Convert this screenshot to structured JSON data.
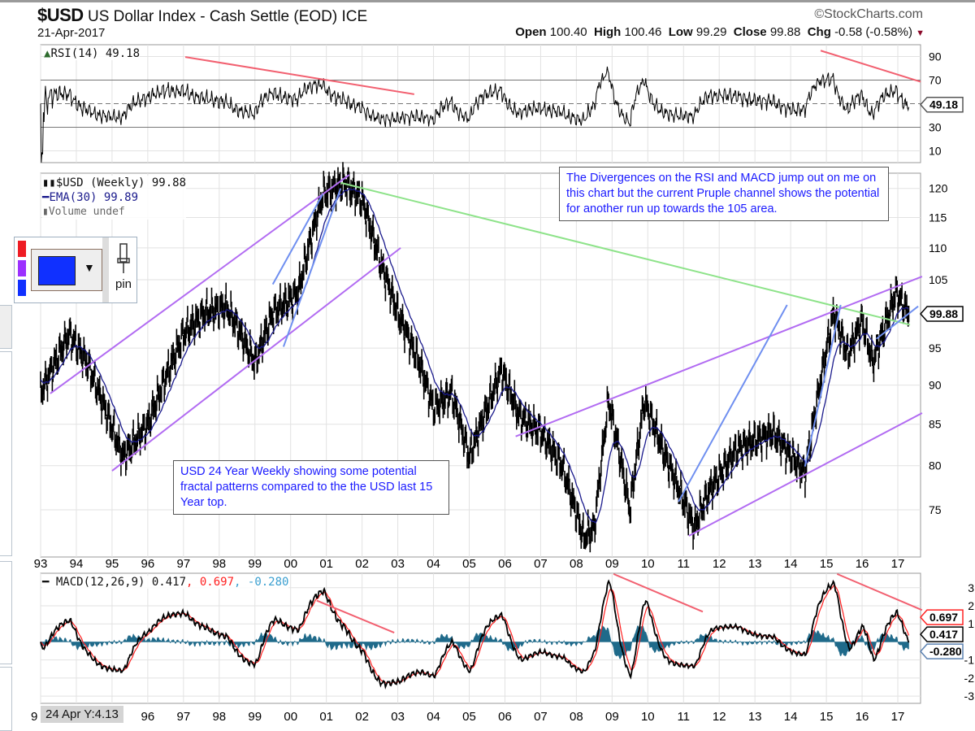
{
  "header": {
    "symbol": "$USD",
    "name": "US Dollar Index - Cash Settle (EOD) ICE",
    "date": "21-Apr-2017",
    "brand": "©StockCharts.com",
    "open_label": "Open",
    "open": "100.40",
    "high_label": "High",
    "high": "100.46",
    "low_label": "Low",
    "low": "99.29",
    "close_label": "Close",
    "close": "99.88",
    "chg_label": "Chg",
    "chg": "-0.58 (-0.58%)"
  },
  "legends": {
    "rsi": "RSI(14) 49.18",
    "price": "$USD (Weekly) 99.88",
    "ema": "EMA(30) 99.89",
    "volume": "Volume undef",
    "macd_label": "MACD(12,26,9) 0.417",
    "macd_signal": ", 0.697",
    "macd_hist": ", -0.280"
  },
  "widget": {
    "pin_label": "pin",
    "swatches": [
      "#ee1c24",
      "#9b30ff",
      "#1030ff"
    ],
    "selected_color": "#1030ff"
  },
  "annotations": {
    "note_rsi_macd": "The Divergences on the RSI and MACD jump out on me on this chart but the current Pruple channel shows the potential for another run up towards the 105 area.",
    "note_fractal": "USD 24 Year Weekly showing some potential fractal patterns compared to the the USD last 15 Year top."
  },
  "crosshair_tooltip": "24 Apr Y:4.13",
  "colors": {
    "price": "#000000",
    "ema": "#1a1a8c",
    "rsi": "#000000",
    "macd": "#000000",
    "signal": "#ff2020",
    "hist": "#1f6a8a",
    "purple": "#b26cf2",
    "blue": "#6f8ff0",
    "green": "#8ee38a",
    "red": "#f26070",
    "grid": "#e2e2e2"
  },
  "chart_data": {
    "type": "line",
    "title": "$USD US Dollar Index - Cash Settle (EOD) ICE",
    "x_range": [
      1993.0,
      17.75
    ],
    "x_tick_labels": [
      "93",
      "94",
      "95",
      "96",
      "97",
      "98",
      "99",
      "00",
      "01",
      "02",
      "03",
      "04",
      "05",
      "06",
      "07",
      "08",
      "09",
      "10",
      "11",
      "12",
      "13",
      "14",
      "15",
      "16",
      "17"
    ],
    "bottom_tick_labels": [
      "9",
      "96",
      "97",
      "98",
      "99",
      "00",
      "01",
      "02",
      "03",
      "04",
      "05",
      "06",
      "07",
      "08",
      "09",
      "10",
      "11",
      "12",
      "13",
      "14",
      "15",
      "16",
      "17"
    ],
    "price_panel": {
      "scale": "log",
      "ylim": [
        70,
        122.7
      ],
      "tick_labels": [
        "120",
        "115",
        "110",
        "105",
        "95",
        "90",
        "85",
        "80",
        "75"
      ],
      "tick_values": [
        120,
        115,
        110,
        105,
        95,
        90,
        85,
        80,
        75
      ],
      "last_value_label": "99.88",
      "keypoints_year_value": [
        [
          1993.0,
          89
        ],
        [
          1993.8,
          97
        ],
        [
          1994.3,
          93
        ],
        [
          1995.3,
          81
        ],
        [
          1996.0,
          85
        ],
        [
          1997.0,
          97
        ],
        [
          1997.6,
          100
        ],
        [
          1998.2,
          101
        ],
        [
          1999.0,
          93
        ],
        [
          1999.5,
          100
        ],
        [
          2000.2,
          103
        ],
        [
          2000.9,
          119
        ],
        [
          2001.5,
          121
        ],
        [
          2002.0,
          118
        ],
        [
          2002.5,
          108
        ],
        [
          2003.0,
          100
        ],
        [
          2003.6,
          93
        ],
        [
          2004.0,
          87
        ],
        [
          2004.5,
          89
        ],
        [
          2005.0,
          81
        ],
        [
          2005.9,
          92
        ],
        [
          2006.4,
          86
        ],
        [
          2007.0,
          84
        ],
        [
          2007.6,
          80
        ],
        [
          2008.2,
          72
        ],
        [
          2008.5,
          73
        ],
        [
          2008.9,
          88
        ],
        [
          2009.5,
          75
        ],
        [
          2009.9,
          88
        ],
        [
          2010.5,
          81
        ],
        [
          2011.3,
          73
        ],
        [
          2011.7,
          77
        ],
        [
          2012.5,
          82
        ],
        [
          2013.5,
          84
        ],
        [
          2014.4,
          79
        ],
        [
          2015.2,
          100
        ],
        [
          2015.6,
          94
        ],
        [
          2016.0,
          99
        ],
        [
          2016.3,
          93
        ],
        [
          2016.95,
          103
        ],
        [
          2017.31,
          99.88
        ]
      ],
      "ema_period": 30
    },
    "rsi_panel": {
      "period": 14,
      "last": 49.18,
      "ylim": [
        0,
        100
      ],
      "levels": [
        30,
        70
      ],
      "tick_labels": [
        "90",
        "70",
        "30",
        "10"
      ],
      "tick_values": [
        90,
        70,
        30,
        10
      ],
      "last_value_label": "49.18"
    },
    "macd_panel": {
      "fast": 12,
      "slow": 26,
      "signal": 9,
      "last_macd": 0.417,
      "last_signal": 0.697,
      "last_hist": -0.28,
      "ylim": [
        -3.4,
        3.8
      ],
      "tick_labels": [
        "3",
        "2",
        "1",
        "-1",
        "-2",
        "-3"
      ],
      "tick_values": [
        3,
        2,
        1,
        -1,
        -2,
        -3
      ],
      "last_macd_label": "0.417",
      "last_signal_label": "0.697",
      "last_hist_label": "-0.280"
    },
    "trendlines": [
      {
        "panel": "price",
        "color": "purple",
        "from": [
          1993.27,
          88.9
        ],
        "to": [
          2001.64,
          122.4
        ]
      },
      {
        "panel": "price",
        "color": "purple",
        "from": [
          1995.0,
          79.4
        ],
        "to": [
          2003.08,
          110
        ]
      },
      {
        "panel": "price",
        "color": "green",
        "from": [
          2001.4,
          121
        ],
        "to": [
          2017.34,
          98.3
        ]
      },
      {
        "panel": "price",
        "color": "purple",
        "from": [
          2006.3,
          83.5
        ],
        "to": [
          2017.68,
          105.5
        ]
      },
      {
        "panel": "price",
        "color": "purple",
        "from": [
          2011.15,
          72.2
        ],
        "to": [
          2017.68,
          86.4
        ]
      },
      {
        "panel": "price",
        "color": "blue",
        "from": [
          1999.5,
          104.3
        ],
        "to": [
          2000.9,
          119
        ]
      },
      {
        "panel": "price",
        "color": "blue",
        "from": [
          1999.8,
          95.2
        ],
        "to": [
          2001.4,
          120
        ]
      },
      {
        "panel": "price",
        "color": "blue",
        "from": [
          2010.86,
          75.9
        ],
        "to": [
          2013.9,
          101.2
        ]
      },
      {
        "panel": "price",
        "color": "blue",
        "from": [
          2014.4,
          79.9
        ],
        "to": [
          2015.4,
          101.2
        ]
      },
      {
        "panel": "price",
        "color": "blue",
        "from": [
          2016.4,
          96.3
        ],
        "to": [
          2017.57,
          101
        ]
      },
      {
        "panel": "rsi",
        "color": "red",
        "from": [
          1997.05,
          89.6
        ],
        "to": [
          2003.46,
          58
        ]
      },
      {
        "panel": "rsi",
        "color": "red",
        "from": [
          2014.84,
          95
        ],
        "to": [
          2017.64,
          68.6
        ]
      },
      {
        "panel": "macd",
        "color": "red",
        "from": [
          2000.73,
          2.29
        ],
        "to": [
          2002.9,
          0.51
        ]
      },
      {
        "panel": "macd",
        "color": "red",
        "from": [
          2009.04,
          3.76
        ],
        "to": [
          2011.54,
          1.67
        ]
      },
      {
        "panel": "macd",
        "color": "red",
        "from": [
          2015.3,
          3.76
        ],
        "to": [
          2017.68,
          1.76
        ]
      }
    ]
  }
}
